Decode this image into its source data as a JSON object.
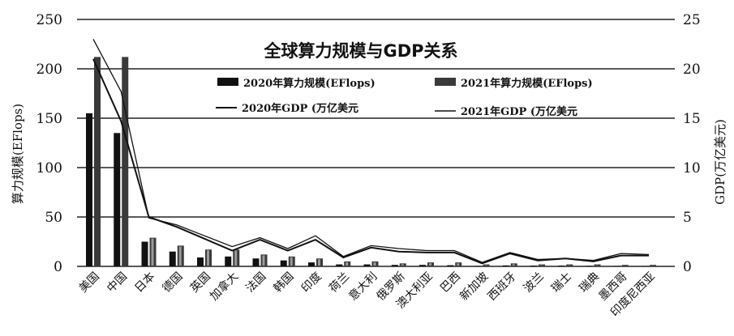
{
  "chart_data": {
    "type": "bar",
    "title": "全球算力规模与GDP关系",
    "ylabel": "算力规模(EFlops)",
    "y2label": "GDP(万亿美元)",
    "ylim": [
      0,
      250
    ],
    "y2lim": [
      0,
      25
    ],
    "yticks": [
      "0",
      "50",
      "100",
      "150",
      "200",
      "250"
    ],
    "y2ticks": [
      "0",
      "5",
      "10",
      "15",
      "20",
      "25"
    ],
    "grid": true,
    "legend_position": "top-right",
    "categories": [
      "美国",
      "中国",
      "日本",
      "德国",
      "英国",
      "加拿大",
      "法国",
      "韩国",
      "印度",
      "荷兰",
      "意大利",
      "俄罗斯",
      "澳大利亚",
      "巴西",
      "新加坡",
      "西班牙",
      "波兰",
      "瑞士",
      "瑞典",
      "墨西哥",
      "印度尼西亚"
    ],
    "bar_series": [
      {
        "name": "2020年算力规模(EFlops)",
        "values": [
          155,
          135,
          25,
          15,
          9,
          10,
          8,
          6,
          4,
          2,
          2,
          1.5,
          1.5,
          1.2,
          0.5,
          1,
          0.8,
          0.8,
          0.6,
          0.5,
          0.4
        ]
      },
      {
        "name": "2021年算力规模(EFlops)",
        "values": [
          212,
          212,
          29,
          21,
          17,
          17,
          12,
          10,
          8,
          5,
          5,
          3,
          4,
          4,
          2,
          3,
          2,
          2,
          2,
          1.5,
          1.5
        ]
      }
    ],
    "line_series": [
      {
        "name": "2020年GDP (万亿美元",
        "values": [
          21,
          14.7,
          5,
          4,
          2.8,
          1.6,
          2.7,
          1.6,
          2.7,
          0.9,
          1.9,
          1.5,
          1.4,
          1.4,
          0.3,
          1.3,
          0.6,
          0.8,
          0.5,
          1.1,
          1.1
        ]
      },
      {
        "name": "2021年GDP (万亿美元",
        "values": [
          23,
          17.7,
          4.9,
          4.2,
          3.1,
          2.0,
          2.9,
          1.8,
          3.1,
          1.0,
          2.1,
          1.8,
          1.6,
          1.6,
          0.4,
          1.4,
          0.7,
          0.8,
          0.6,
          1.3,
          1.2
        ]
      }
    ],
    "colors": {
      "bar2020": "#111111",
      "bar2021": "#3a3a3a",
      "bar2021_highlight": "#9a9a9a",
      "line": "#111111",
      "grid": "#222222"
    }
  }
}
